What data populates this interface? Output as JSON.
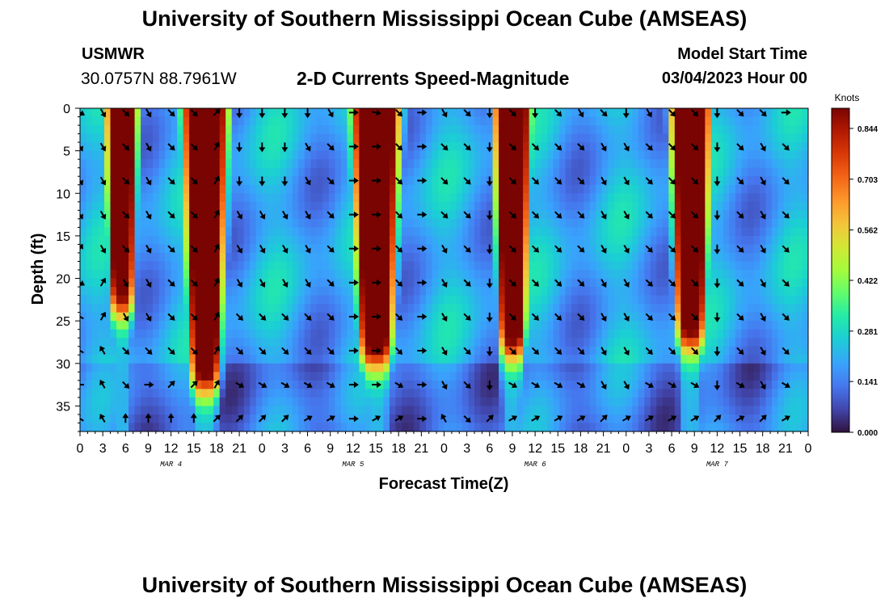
{
  "header": {
    "title": "University of Southern Mississippi Ocean Cube (AMSEAS)",
    "station": "USMWR",
    "coords": "30.0757N  88.7961W",
    "subtitle": "2-D Currents Speed-Magnitude",
    "model_start_label": "Model Start Time",
    "model_start_value": "03/04/2023 Hour 00"
  },
  "footer": {
    "title": "University of Southern Mississippi Ocean Cube (AMSEAS)"
  },
  "chart_data": {
    "type": "heatmap",
    "title": "2-D Currents Speed-Magnitude",
    "xlabel": "Forecast Time(Z)",
    "ylabel": "Depth (ft)",
    "x_hours": [
      0,
      96
    ],
    "ylim": [
      0,
      38
    ],
    "x_ticks": [
      "0",
      "3",
      "6",
      "9",
      "12",
      "15",
      "18",
      "21",
      "0",
      "3",
      "6",
      "9",
      "12",
      "15",
      "18",
      "21",
      "0",
      "3",
      "6",
      "9",
      "12",
      "15",
      "18",
      "21",
      "0",
      "3",
      "6",
      "9",
      "12",
      "15",
      "18",
      "21",
      "0"
    ],
    "date_labels": [
      {
        "label": "MAR 4",
        "hour": 12
      },
      {
        "label": "MAR 5",
        "hour": 36
      },
      {
        "label": "MAR 6",
        "hour": 60
      },
      {
        "label": "MAR 7",
        "hour": 84
      }
    ],
    "y_ticks": [
      0,
      5,
      10,
      15,
      20,
      25,
      30,
      35
    ],
    "colorbar": {
      "unit": "Knots",
      "ticks": [
        "0.844",
        "0.703",
        "0.562",
        "0.422",
        "0.281",
        "0.141",
        "0.000"
      ],
      "range": [
        0.0,
        0.9
      ]
    },
    "speed_peaks_knots": [
      {
        "hour_center": 5.5,
        "hour_halfwidth": 2.2,
        "depth_bottom_ft": 24,
        "peak": 0.85
      },
      {
        "hour_center": 16.5,
        "hour_halfwidth": 3.2,
        "depth_bottom_ft": 33,
        "peak": 0.9
      },
      {
        "hour_center": 39,
        "hour_halfwidth": 3.4,
        "depth_bottom_ft": 30,
        "peak": 0.9
      },
      {
        "hour_center": 57,
        "hour_halfwidth": 2.6,
        "depth_bottom_ft": 29,
        "peak": 0.88
      },
      {
        "hour_center": 80.5,
        "hour_halfwidth": 2.8,
        "depth_bottom_ft": 28,
        "peak": 0.88
      }
    ],
    "vector_directions_deg": [
      [
        120,
        150,
        135,
        150,
        135,
        135,
        45,
        180,
        180,
        180,
        180,
        150,
        90,
        100,
        135,
        90,
        150,
        135,
        180,
        135,
        180,
        135,
        150,
        135,
        180,
        150,
        135,
        135,
        180,
        135,
        135,
        90
      ],
      [
        150,
        150,
        135,
        150,
        135,
        135,
        30,
        180,
        180,
        180,
        150,
        135,
        90,
        90,
        135,
        90,
        135,
        135,
        180,
        135,
        135,
        135,
        135,
        150,
        150,
        135,
        135,
        135,
        180,
        135,
        150,
        135
      ],
      [
        150,
        150,
        135,
        150,
        135,
        135,
        30,
        180,
        180,
        180,
        150,
        135,
        90,
        90,
        135,
        90,
        135,
        135,
        180,
        135,
        135,
        135,
        135,
        150,
        150,
        135,
        135,
        135,
        180,
        135,
        150,
        135
      ],
      [
        150,
        150,
        135,
        150,
        135,
        135,
        30,
        150,
        150,
        150,
        150,
        135,
        90,
        90,
        135,
        90,
        135,
        135,
        180,
        135,
        135,
        135,
        135,
        150,
        150,
        135,
        135,
        135,
        180,
        135,
        150,
        135
      ],
      [
        30,
        150,
        135,
        150,
        135,
        135,
        30,
        150,
        150,
        150,
        150,
        135,
        90,
        90,
        135,
        90,
        150,
        135,
        180,
        135,
        135,
        135,
        135,
        150,
        150,
        135,
        135,
        135,
        180,
        135,
        150,
        135
      ],
      [
        120,
        30,
        150,
        150,
        135,
        135,
        30,
        150,
        150,
        150,
        150,
        135,
        90,
        90,
        135,
        90,
        150,
        135,
        180,
        135,
        135,
        135,
        135,
        150,
        150,
        135,
        135,
        135,
        180,
        135,
        150,
        135
      ],
      [
        300,
        30,
        150,
        150,
        135,
        135,
        30,
        135,
        135,
        135,
        135,
        135,
        90,
        90,
        135,
        90,
        150,
        135,
        180,
        135,
        135,
        135,
        135,
        150,
        150,
        135,
        135,
        135,
        180,
        135,
        150,
        135
      ],
      [
        300,
        330,
        135,
        135,
        135,
        135,
        30,
        135,
        135,
        135,
        135,
        135,
        90,
        90,
        135,
        90,
        150,
        135,
        180,
        135,
        135,
        135,
        135,
        150,
        150,
        135,
        135,
        135,
        180,
        135,
        150,
        135
      ],
      [
        270,
        330,
        135,
        90,
        45,
        45,
        30,
        120,
        120,
        120,
        120,
        120,
        90,
        90,
        120,
        90,
        150,
        135,
        180,
        120,
        120,
        120,
        120,
        150,
        150,
        120,
        120,
        120,
        180,
        120,
        150,
        120
      ],
      [
        300,
        330,
        0,
        0,
        0,
        0,
        45,
        45,
        45,
        45,
        60,
        60,
        90,
        60,
        60,
        90,
        330,
        135,
        45,
        60,
        60,
        60,
        60,
        45,
        60,
        60,
        60,
        60,
        45,
        60,
        45,
        60
      ]
    ]
  }
}
